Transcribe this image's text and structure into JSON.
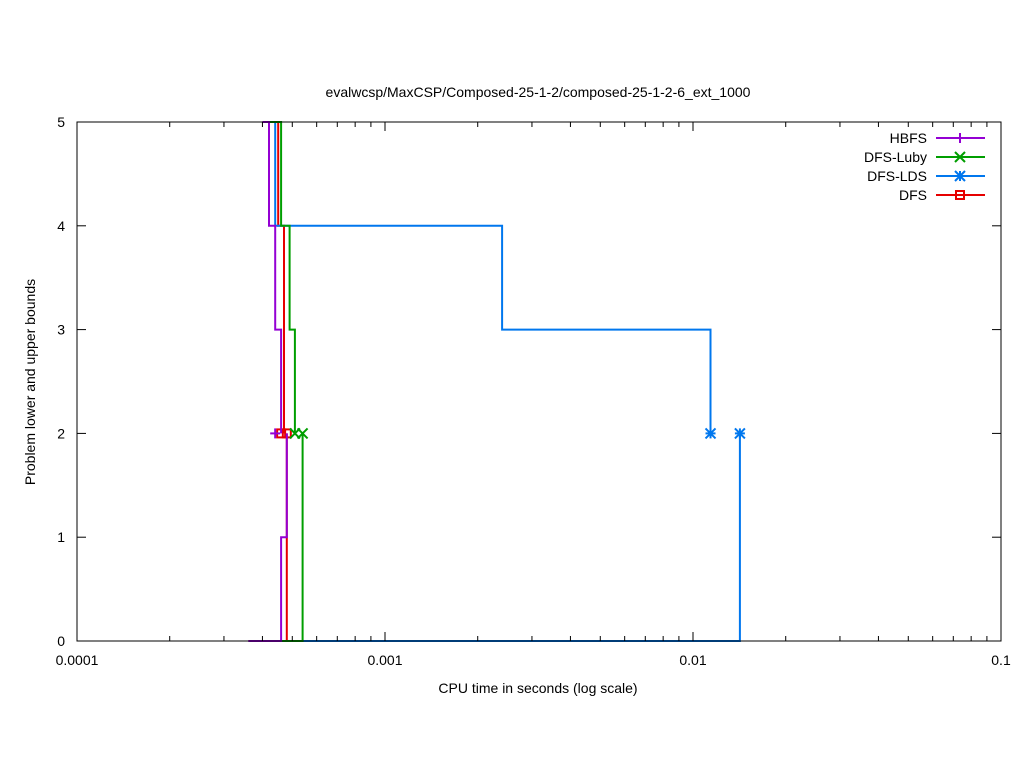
{
  "chart_data": {
    "type": "line",
    "title": "evalwcsp/MaxCSP/Composed-25-1-2/composed-25-1-2-6_ext_1000",
    "xlabel": "CPU time in seconds (log scale)",
    "ylabel": "Problem lower and upper bounds",
    "x_scale": "log",
    "xlim": [
      0.0001,
      0.1
    ],
    "ylim": [
      0,
      5
    ],
    "x_ticks": [
      0.0001,
      0.001,
      0.01,
      0.1
    ],
    "x_tick_labels": [
      "0.0001",
      "0.001",
      "0.01",
      "0.1"
    ],
    "y_ticks": [
      0,
      1,
      2,
      3,
      4,
      5
    ],
    "y_tick_labels": [
      "0",
      "1",
      "2",
      "3",
      "4",
      "5"
    ],
    "grid": false,
    "legend_position": "top-right",
    "series": [
      {
        "name": "HBFS",
        "color": "#9400d3",
        "marker": "plus",
        "upper": [
          [
            0.0004,
            5
          ],
          [
            0.00042,
            4
          ],
          [
            0.00044,
            3
          ],
          [
            0.00046,
            2
          ]
        ],
        "lower": [
          [
            0.00036,
            0
          ],
          [
            0.00046,
            1
          ],
          [
            0.00048,
            2
          ]
        ],
        "markers": [
          [
            0.00044,
            2
          ]
        ]
      },
      {
        "name": "DFS-Luby",
        "color": "#009e00",
        "marker": "x",
        "upper": [
          [
            0.00041,
            5
          ],
          [
            0.00046,
            4
          ],
          [
            0.00049,
            3
          ],
          [
            0.00051,
            2
          ]
        ],
        "lower": [
          [
            0.00041,
            0
          ],
          [
            0.00054,
            0
          ],
          [
            0.00054,
            2
          ]
        ],
        "markers": [
          [
            0.00051,
            2
          ],
          [
            0.00054,
            2
          ]
        ]
      },
      {
        "name": "DFS-LDS",
        "color": "#0077ee",
        "marker": "star",
        "upper": [
          [
            0.00042,
            5
          ],
          [
            0.00044,
            4
          ],
          [
            0.0024,
            3
          ],
          [
            0.0114,
            2
          ]
        ],
        "lower": [
          [
            0.00042,
            0
          ],
          [
            0.0142,
            0
          ],
          [
            0.0142,
            2
          ]
        ],
        "markers": [
          [
            0.0114,
            2
          ],
          [
            0.0142,
            2
          ]
        ]
      },
      {
        "name": "DFS",
        "color": "#e60000",
        "marker": "square",
        "upper": [
          [
            0.00042,
            5
          ],
          [
            0.00045,
            4
          ],
          [
            0.00047,
            3
          ],
          [
            0.00047,
            2
          ]
        ],
        "lower": [
          [
            0.00042,
            0
          ],
          [
            0.00048,
            0
          ],
          [
            0.00048,
            2
          ]
        ],
        "markers": [
          [
            0.00046,
            2
          ],
          [
            0.00048,
            2
          ]
        ]
      }
    ]
  }
}
